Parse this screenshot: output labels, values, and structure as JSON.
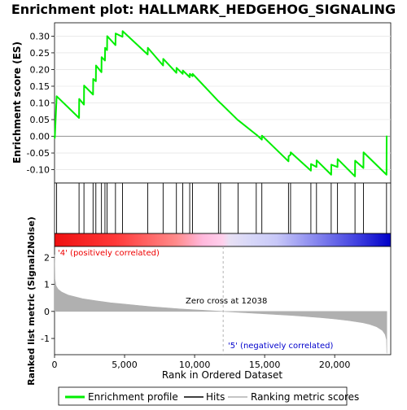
{
  "chart_data": {
    "type": "line",
    "title": "Enrichment plot: HALLMARK_HEDGEHOG_SIGNALING",
    "xlabel": "Rank in Ordered Dataset",
    "xlim": [
      0,
      24000
    ],
    "x_ticks": [
      "0",
      "5,000",
      "10,000",
      "15,000",
      "20,000"
    ],
    "x_tick_values": [
      0,
      5000,
      10000,
      15000,
      20000
    ],
    "top_panel": {
      "ylabel": "Enrichment score (ES)",
      "ylim": [
        -0.14,
        0.34
      ],
      "y_ticks": [
        "-0.10",
        "-0.05",
        "0.00",
        "0.05",
        "0.10",
        "0.15",
        "0.20",
        "0.25",
        "0.30"
      ],
      "y_tick_values": [
        -0.1,
        -0.05,
        0.0,
        0.05,
        0.1,
        0.15,
        0.2,
        0.25,
        0.3
      ],
      "series": [
        {
          "name": "Enrichment profile",
          "color": "#00ee00",
          "x": [
            0,
            20,
            150,
            1750,
            1760,
            2100,
            2110,
            2750,
            2760,
            2950,
            2960,
            3350,
            3360,
            3600,
            3610,
            3750,
            3760,
            4350,
            4360,
            4850,
            4860,
            6650,
            6660,
            7750,
            7760,
            8700,
            8710,
            9150,
            9160,
            9650,
            9660,
            9850,
            9860,
            11700,
            11710,
            11850,
            11860,
            13100,
            13110,
            14400,
            14410,
            14800,
            14810,
            16700,
            16710,
            16850,
            16860,
            18300,
            18310,
            18700,
            18710,
            19750,
            19760,
            20200,
            20210,
            21450,
            21460,
            22050,
            22060,
            23700,
            23710
          ],
          "y": [
            0.0,
            -0.005,
            0.12,
            0.055,
            0.112,
            0.095,
            0.152,
            0.125,
            0.172,
            0.165,
            0.212,
            0.192,
            0.237,
            0.227,
            0.265,
            0.258,
            0.3,
            0.273,
            0.308,
            0.298,
            0.315,
            0.245,
            0.265,
            0.212,
            0.232,
            0.19,
            0.205,
            0.187,
            0.197,
            0.177,
            0.187,
            0.18,
            0.187,
            0.105,
            0.105,
            0.099,
            0.099,
            0.048,
            0.048,
            0.005,
            0.005,
            -0.01,
            0.002,
            -0.075,
            -0.06,
            -0.055,
            -0.048,
            -0.103,
            -0.083,
            -0.092,
            -0.072,
            -0.115,
            -0.085,
            -0.092,
            -0.068,
            -0.12,
            -0.073,
            -0.095,
            -0.048,
            -0.115,
            0.002
          ]
        }
      ]
    },
    "hits": {
      "name": "Hits",
      "color": "#000000",
      "x": [
        150,
        1750,
        2100,
        2750,
        2950,
        3350,
        3600,
        3750,
        4350,
        4850,
        6650,
        7750,
        8700,
        9150,
        9650,
        9850,
        11700,
        11850,
        13100,
        14400,
        14800,
        16700,
        16850,
        18300,
        18700,
        19750,
        20200,
        21450,
        22050,
        23700
      ]
    },
    "bottom_panel": {
      "ylabel": "Ranked list metric (Signal2Noise)",
      "ylim": [
        -1.6,
        2.4
      ],
      "y_ticks": [
        "-1",
        "0",
        "1",
        "2"
      ],
      "y_tick_values": [
        -1,
        0,
        1,
        2
      ],
      "series": [
        {
          "name": "Ranking metric scores",
          "color": "#b0b0b0",
          "x": [
            0,
            30,
            100,
            250,
            500,
            1000,
            2000,
            3000,
            4000,
            5000,
            6000,
            7000,
            8000,
            9000,
            10000,
            11000,
            12038,
            13000,
            14000,
            15000,
            16000,
            17000,
            18000,
            19000,
            20000,
            21000,
            22000,
            22500,
            23000,
            23400,
            23600,
            23700,
            23720
          ],
          "y": [
            2.1,
            1.2,
            0.95,
            0.82,
            0.72,
            0.6,
            0.47,
            0.39,
            0.32,
            0.27,
            0.22,
            0.17,
            0.13,
            0.09,
            0.06,
            0.03,
            0.0,
            -0.03,
            -0.06,
            -0.09,
            -0.12,
            -0.15,
            -0.19,
            -0.23,
            -0.28,
            -0.34,
            -0.42,
            -0.48,
            -0.57,
            -0.7,
            -0.85,
            -1.05,
            -1.55
          ]
        }
      ],
      "zero_cross_label": "Zero cross at 12038",
      "zero_cross": 12038,
      "pos_label": "'4' (positively correlated)",
      "neg_label": "'5' (negatively correlated)",
      "pos_color": "#ff0000",
      "neg_color": "#0000ff"
    },
    "legend": {
      "placement": "bottom",
      "entries": [
        {
          "name": "Enrichment profile",
          "color": "#00ee00"
        },
        {
          "name": "Hits",
          "color": "#000000"
        },
        {
          "name": "Ranking metric scores",
          "color": "#b0b0b0"
        }
      ]
    }
  }
}
